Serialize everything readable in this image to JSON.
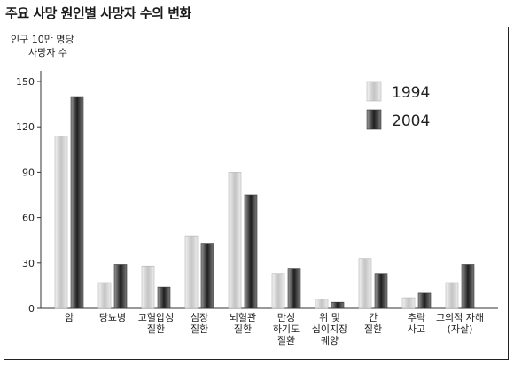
{
  "title": "주요 사망 원인별 사망자 수의 변화",
  "chart_data": {
    "type": "bar",
    "ylabel_lines": [
      "인구 10만 명당",
      "사망자 수"
    ],
    "ylim": [
      0,
      150
    ],
    "yticks": [
      0,
      30,
      60,
      90,
      120,
      150
    ],
    "categories": [
      [
        "암"
      ],
      [
        "당뇨병"
      ],
      [
        "고혈압성",
        "질환"
      ],
      [
        "심장",
        "질환"
      ],
      [
        "뇌혈관",
        "질환"
      ],
      [
        "만성",
        "하기도",
        "질환"
      ],
      [
        "위 및",
        "십이지장",
        "궤양"
      ],
      [
        "간",
        "질환"
      ],
      [
        "추락",
        "사고"
      ],
      [
        "고의적 자해",
        "(자살)"
      ]
    ],
    "series": [
      {
        "name": "1994",
        "color": "#cfcfcf",
        "values": [
          114,
          17,
          28,
          48,
          90,
          23,
          6,
          33,
          7,
          17
        ]
      },
      {
        "name": "2004",
        "color": "#444444",
        "values": [
          140,
          29,
          14,
          43,
          75,
          26,
          4,
          23,
          10,
          29
        ]
      }
    ],
    "legend_position": "top-right",
    "grid": false
  }
}
